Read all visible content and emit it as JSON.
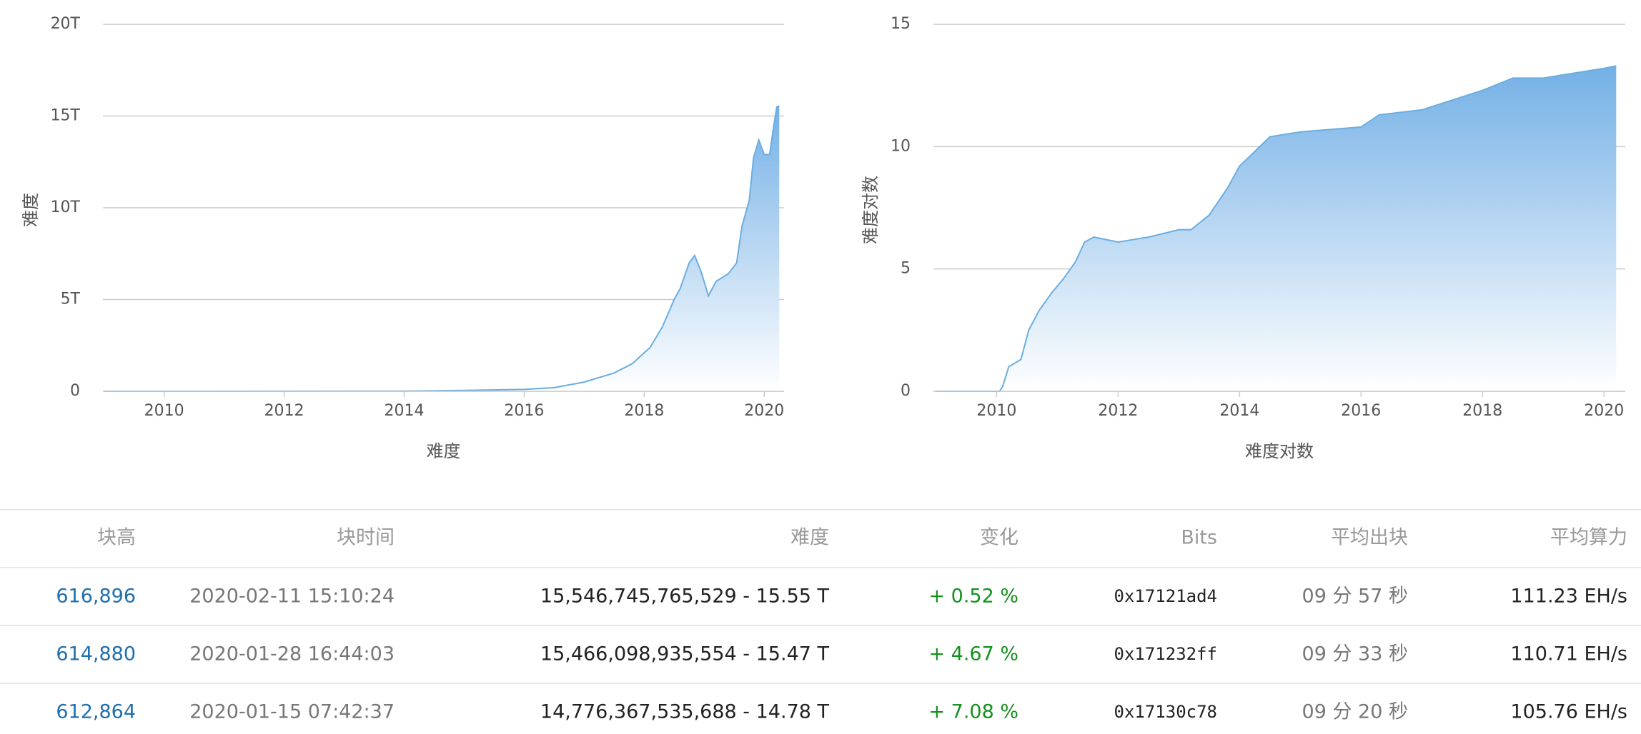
{
  "chart_data": [
    {
      "type": "area",
      "y_label": "难度",
      "x_label": "难度",
      "color": "#6aaee0",
      "x": [
        2009.0,
        2012.0,
        2014.0,
        2015.0,
        2016.0,
        2016.5,
        2017.0,
        2017.5,
        2017.8,
        2018.1,
        2018.3,
        2018.5,
        2018.6,
        2018.75,
        2018.84,
        2018.95,
        2019.07,
        2019.2,
        2019.4,
        2019.54,
        2019.63,
        2019.75,
        2019.82,
        2019.91,
        2020.0,
        2020.09,
        2020.16,
        2020.21,
        2020.25
      ],
      "values": [
        0,
        0.003,
        0.01,
        0.05,
        0.1,
        0.2,
        0.5,
        1.0,
        1.5,
        2.4,
        3.5,
        5.0,
        5.6,
        7.0,
        7.4,
        6.5,
        5.2,
        6.0,
        6.4,
        7.0,
        9.0,
        10.4,
        12.7,
        13.7,
        12.9,
        12.9,
        14.5,
        15.5,
        15.55
      ],
      "xlim": [
        2008.98,
        2020.33
      ],
      "xticks": [
        2010,
        2012,
        2014,
        2016,
        2018,
        2020
      ],
      "ylim": [
        0,
        20
      ],
      "yticks": [
        0,
        {
          "value": 5,
          "label": "5T"
        },
        {
          "value": 10,
          "label": "10T"
        },
        {
          "value": 15,
          "label": "15T"
        },
        {
          "value": 20,
          "label": "20T"
        }
      ],
      "grid": true
    },
    {
      "type": "area",
      "y_label": "难度对数",
      "x_label": "难度对数",
      "color": "#6aaee0",
      "x": [
        2009.0,
        2010.05,
        2010.1,
        2010.2,
        2010.4,
        2010.53,
        2010.7,
        2010.9,
        2011.1,
        2011.3,
        2011.45,
        2011.6,
        2012.0,
        2012.5,
        2013.0,
        2013.2,
        2013.5,
        2013.8,
        2014.0,
        2014.5,
        2015.0,
        2016.0,
        2016.3,
        2017.0,
        2017.5,
        2018.0,
        2018.5,
        2019.0,
        2019.5,
        2020.0,
        2020.2
      ],
      "values": [
        0,
        0,
        0.2,
        1.0,
        1.3,
        2.5,
        3.3,
        4.0,
        4.6,
        5.3,
        6.1,
        6.3,
        6.1,
        6.3,
        6.6,
        6.6,
        7.2,
        8.3,
        9.2,
        10.4,
        10.6,
        10.8,
        11.3,
        11.5,
        11.9,
        12.3,
        12.8,
        12.8,
        13.0,
        13.2,
        13.3
      ],
      "xlim": [
        2008.96,
        2020.35
      ],
      "xticks": [
        2010,
        2012,
        2014,
        2016,
        2018,
        2020
      ],
      "ylim": [
        0,
        15
      ],
      "yticks": [
        0,
        5,
        10,
        15
      ],
      "grid": true
    }
  ],
  "table": {
    "headers": [
      "块高",
      "块时间",
      "难度",
      "变化",
      "Bits",
      "平均出块",
      "平均算力"
    ],
    "rows": [
      [
        "616,896",
        "2020-02-11 15:10:24",
        "15,546,745,765,529 - 15.55 T",
        "+ 0.52 %",
        "0x17121ad4",
        "09 分 57 秒",
        "111.23 EH/s"
      ],
      [
        "614,880",
        "2020-01-28 16:44:03",
        "15,466,098,935,554 - 15.47 T",
        "+ 4.67 %",
        "0x171232ff",
        "09 分 33 秒",
        "110.71 EH/s"
      ],
      [
        "612,864",
        "2020-01-15 07:42:37",
        "14,776,367,535,688 - 14.78 T",
        "+ 7.08 %",
        "0x17130c78",
        "09 分 20 秒",
        "105.76 EH/s"
      ]
    ]
  }
}
